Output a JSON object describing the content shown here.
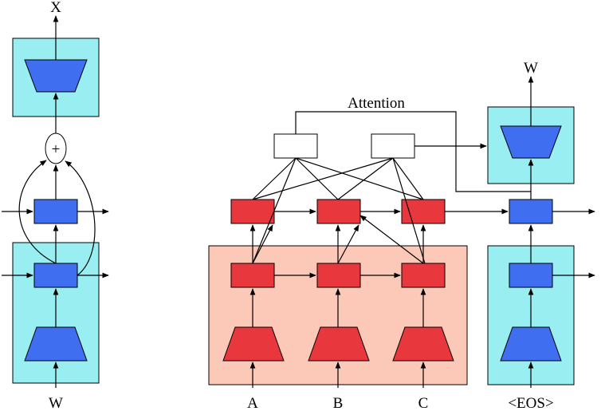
{
  "labels": {
    "left_output": "X",
    "left_input": "W",
    "plus": "+",
    "attention": "Attention",
    "decoder_output": "W",
    "input_a": "A",
    "input_b": "B",
    "input_c": "C",
    "eos": "<EOS>"
  }
}
